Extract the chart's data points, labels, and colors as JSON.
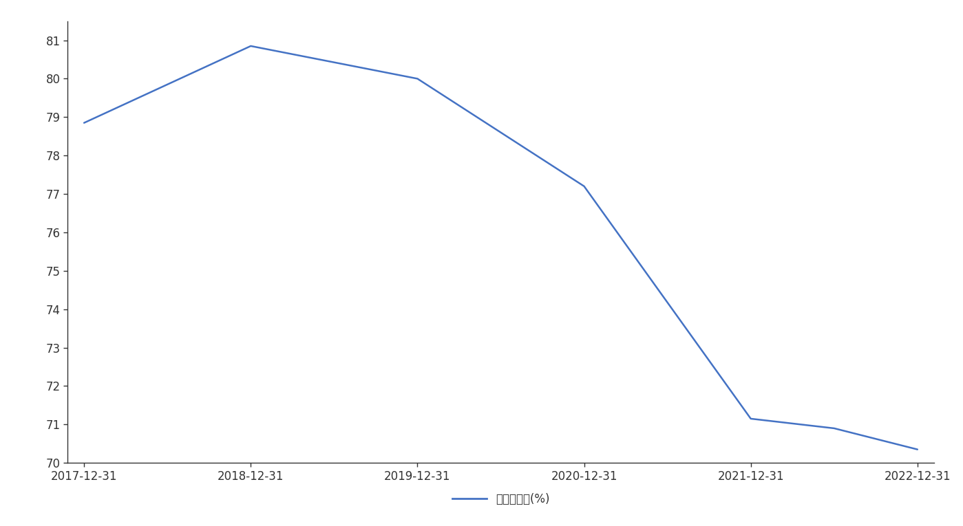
{
  "x_values": [
    0,
    1,
    2,
    3,
    4,
    4.5,
    5
  ],
  "y_values": [
    78.85,
    80.85,
    80.0,
    77.2,
    71.15,
    70.9,
    70.35
  ],
  "x_tick_positions": [
    0,
    1,
    2,
    3,
    4,
    5
  ],
  "x_tick_labels": [
    "2017-12-31",
    "2018-12-31",
    "2019-12-31",
    "2020-12-31",
    "2021-12-31",
    "2022-12-31"
  ],
  "ylim": [
    70,
    81.5
  ],
  "yticks": [
    70,
    71,
    72,
    73,
    74,
    75,
    76,
    77,
    78,
    79,
    80,
    81
  ],
  "line_color": "#4472C4",
  "line_width": 1.8,
  "legend_label": "销售毛利率(%)",
  "background_color": "#ffffff",
  "spine_color": "#333333",
  "tick_label_color": "#333333",
  "font_size_ticks": 12,
  "font_size_legend": 12,
  "xlim": [
    -0.1,
    5.1
  ]
}
